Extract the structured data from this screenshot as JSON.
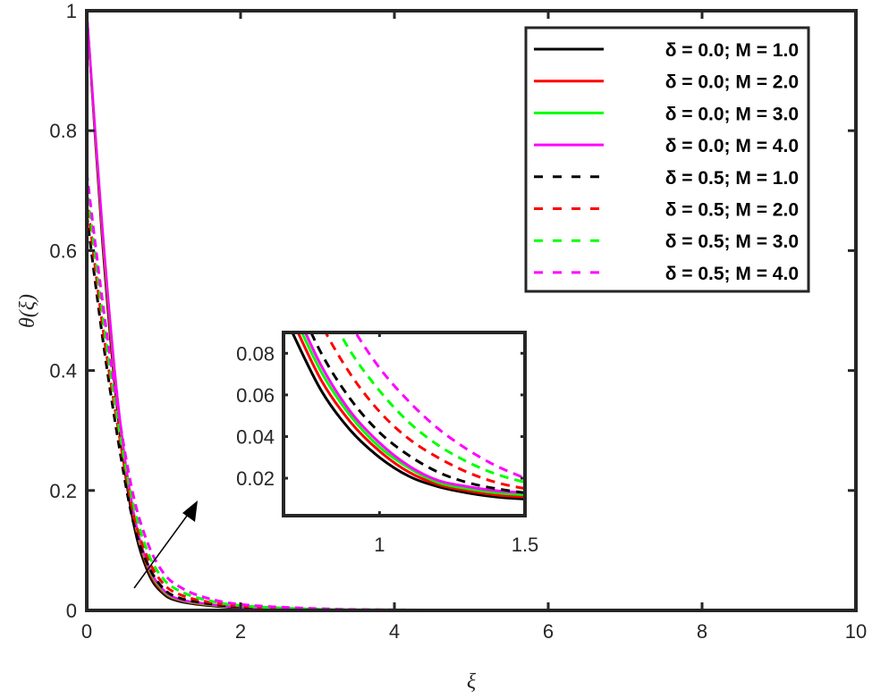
{
  "chart_data": {
    "type": "line",
    "title": "",
    "xlabel": "ξ",
    "ylabel": "θ(ξ)",
    "xlim": [
      0,
      10
    ],
    "ylim": [
      0,
      1
    ],
    "xticks": [
      "0",
      "2",
      "4",
      "6",
      "8",
      "10"
    ],
    "yticks": [
      "0",
      "0.2",
      "0.4",
      "0.6",
      "0.8",
      "1"
    ],
    "grid": false,
    "legend_position": "upper right",
    "x": [
      0,
      0.2,
      0.4,
      0.6,
      0.8,
      1.0,
      1.2,
      1.5,
      2.0,
      3.0,
      4.0,
      6.0,
      10.0
    ],
    "series": [
      {
        "name": "δ = 0.0; M = 1.0",
        "color": "#000000",
        "dash": "solid",
        "values": [
          1.0,
          0.62,
          0.33,
          0.15,
          0.062,
          0.027,
          0.015,
          0.009,
          0.004,
          0.001,
          0.0,
          0.0,
          0.0
        ]
      },
      {
        "name": "δ = 0.0; M = 2.0",
        "color": "#ff0000",
        "dash": "solid",
        "values": [
          1.0,
          0.63,
          0.34,
          0.16,
          0.068,
          0.03,
          0.017,
          0.01,
          0.005,
          0.001,
          0.0,
          0.0,
          0.0
        ]
      },
      {
        "name": "δ = 0.0; M = 3.0",
        "color": "#00ff00",
        "dash": "solid",
        "values": [
          1.0,
          0.64,
          0.35,
          0.165,
          0.072,
          0.032,
          0.018,
          0.011,
          0.005,
          0.001,
          0.0,
          0.0,
          0.0
        ]
      },
      {
        "name": "δ = 0.0; M = 4.0",
        "color": "#ff00ff",
        "dash": "solid",
        "values": [
          1.0,
          0.645,
          0.355,
          0.17,
          0.075,
          0.034,
          0.019,
          0.012,
          0.005,
          0.001,
          0.0,
          0.0,
          0.0
        ]
      },
      {
        "name": "δ = 0.5; M = 1.0",
        "color": "#000000",
        "dash": "dashed",
        "values": [
          0.66,
          0.46,
          0.29,
          0.15,
          0.075,
          0.036,
          0.021,
          0.013,
          0.006,
          0.001,
          0.0,
          0.0,
          0.0
        ]
      },
      {
        "name": "δ = 0.5; M = 2.0",
        "color": "#ff0000",
        "dash": "dashed",
        "values": [
          0.69,
          0.48,
          0.31,
          0.165,
          0.085,
          0.044,
          0.027,
          0.016,
          0.007,
          0.002,
          0.0,
          0.0,
          0.0
        ]
      },
      {
        "name": "δ = 0.5; M = 3.0",
        "color": "#00ff00",
        "dash": "dashed",
        "values": [
          0.71,
          0.5,
          0.32,
          0.18,
          0.095,
          0.052,
          0.033,
          0.019,
          0.008,
          0.002,
          0.001,
          0.0,
          0.0
        ]
      },
      {
        "name": "δ = 0.5; M = 4.0",
        "color": "#ff00ff",
        "dash": "dashed",
        "values": [
          0.73,
          0.52,
          0.34,
          0.195,
          0.11,
          0.062,
          0.04,
          0.023,
          0.01,
          0.003,
          0.001,
          0.0,
          0.0
        ]
      }
    ],
    "annotations": [
      {
        "type": "arrow",
        "from": [
          0.62,
          0.04
        ],
        "to": [
          1.45,
          0.18
        ],
        "meaning": "increasing M"
      }
    ],
    "inset": {
      "xlim": [
        0.67,
        1.5
      ],
      "ylim": [
        0.002,
        0.09
      ],
      "xticks": [
        "1",
        "1.5"
      ],
      "yticks": [
        "0.02",
        "0.04",
        "0.06",
        "0.08"
      ],
      "x": [
        0.7,
        0.8,
        0.9,
        1.0,
        1.1,
        1.2,
        1.3,
        1.4,
        1.5
      ],
      "series": [
        {
          "name": "δ = 0.0; M = 1.0",
          "values": [
            0.09,
            0.062,
            0.043,
            0.03,
            0.021,
            0.016,
            0.013,
            0.011,
            0.01
          ]
        },
        {
          "name": "δ = 0.0; M = 2.0",
          "values": [
            0.096,
            0.067,
            0.047,
            0.033,
            0.023,
            0.017,
            0.014,
            0.012,
            0.011
          ]
        },
        {
          "name": "δ = 0.0; M = 3.0",
          "values": [
            0.1,
            0.071,
            0.05,
            0.035,
            0.025,
            0.018,
            0.015,
            0.013,
            0.012
          ]
        },
        {
          "name": "δ = 0.0; M = 4.0",
          "values": [
            0.104,
            0.074,
            0.052,
            0.037,
            0.026,
            0.019,
            0.016,
            0.014,
            0.013
          ]
        },
        {
          "name": "δ = 0.5; M = 1.0",
          "values": [
            0.11,
            0.08,
            0.058,
            0.042,
            0.031,
            0.023,
            0.018,
            0.015,
            0.013
          ]
        },
        {
          "name": "δ = 0.5; M = 2.0",
          "values": [
            0.125,
            0.094,
            0.07,
            0.052,
            0.039,
            0.03,
            0.023,
            0.018,
            0.015
          ]
        },
        {
          "name": "δ = 0.5; M = 3.0",
          "values": [
            0.14,
            0.107,
            0.081,
            0.062,
            0.047,
            0.036,
            0.028,
            0.022,
            0.018
          ]
        },
        {
          "name": "δ = 0.5; M = 4.0",
          "values": [
            0.155,
            0.12,
            0.094,
            0.073,
            0.057,
            0.044,
            0.034,
            0.026,
            0.02
          ]
        }
      ]
    }
  }
}
